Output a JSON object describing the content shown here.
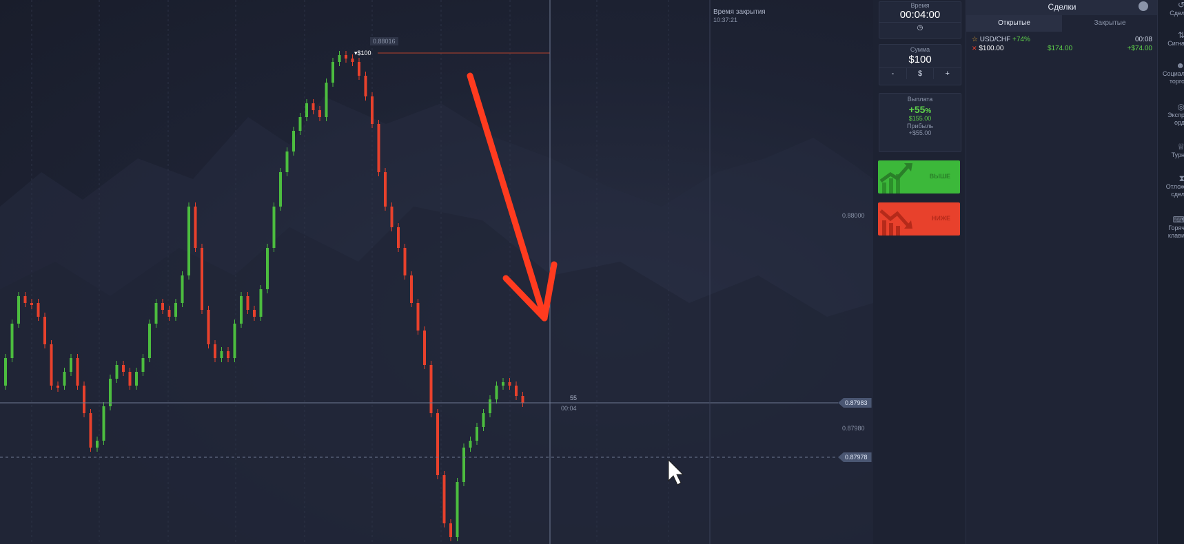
{
  "chart": {
    "top_price_label": "0.88016",
    "trade_marker": "▾$100",
    "price_label_right": "0.88000",
    "current_price": "0.87983",
    "price_label_lower": "0.87980",
    "open_price": "0.87978",
    "timer_main": "55",
    "timer_sub": "00:04",
    "close_time_title": "Время закрытия",
    "close_time_value": "10:37:21",
    "colors": {
      "up": "#4cbd3f",
      "down": "#e8412c",
      "arrow": "#ff3b1f"
    }
  },
  "trade_panel": {
    "time_title": "Время",
    "time_value": "00:04:00",
    "amount_title": "Сумма",
    "amount_value": "$100",
    "minus": "-",
    "currency": "$",
    "plus": "+",
    "payout_title": "Выплата",
    "payout_percent": "+55",
    "payout_percent_sign": "%",
    "payout_amount": "$155.00",
    "profit_title": "Прибыль",
    "profit_value": "+$55.00",
    "higher_label": "ВЫШЕ",
    "lower_label": "НИЖЕ"
  },
  "deals": {
    "title": "Сделки",
    "tab_open": "Открытые",
    "tab_closed": "Закрытые",
    "items": [
      {
        "pair": "USD/CHF",
        "payout": "+74%",
        "time": "00:08",
        "amount": "$100.00",
        "potential": "$174.00",
        "profit": "+$74.00"
      }
    ]
  },
  "side_menu": [
    {
      "label1": "Сдел",
      "label2": ""
    },
    {
      "label1": "Сигна",
      "label2": ""
    },
    {
      "label1": "Социал",
      "label2": "торго"
    },
    {
      "label1": "Экспр",
      "label2": "орд"
    },
    {
      "label1": "Турн",
      "label2": ""
    },
    {
      "label1": "Отлож",
      "label2": "сдел"
    },
    {
      "label1": "Горяч",
      "label2": "клави"
    }
  ]
}
